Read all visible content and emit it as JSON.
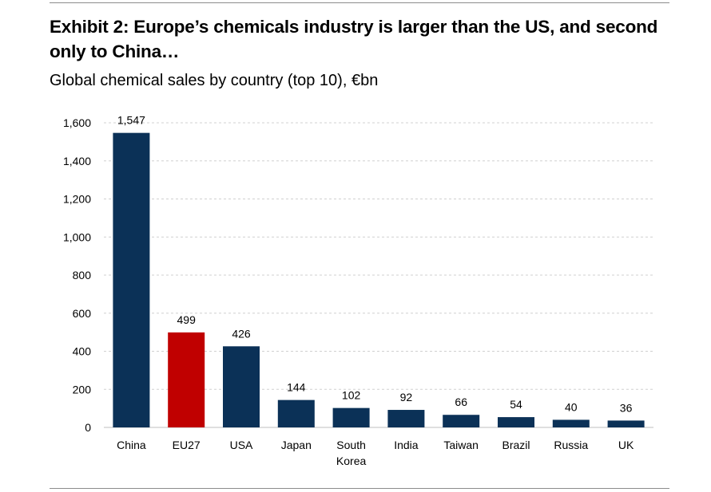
{
  "title": "Exhibit 2: Europe’s chemicals industry is larger than the US, and second only to China…",
  "subtitle": "Global chemical sales by country (top 10), €bn",
  "colors": {
    "default_bar": "#0b3157",
    "highlight_bar": "#c00000",
    "grid": "#d0d0d0",
    "axis": "#bfbfbf"
  },
  "chart_data": {
    "type": "bar",
    "categories": [
      "China",
      "EU27",
      "USA",
      "Japan",
      "South Korea",
      "India",
      "Taiwan",
      "Brazil",
      "Russia",
      "UK"
    ],
    "values": [
      1547,
      499,
      426,
      144,
      102,
      92,
      66,
      54,
      40,
      36
    ],
    "value_labels": [
      "1,547",
      "499",
      "426",
      "144",
      "102",
      "92",
      "66",
      "54",
      "40",
      "36"
    ],
    "highlight": "EU27",
    "ylim": [
      0,
      1600
    ],
    "yticks": [
      0,
      200,
      400,
      600,
      800,
      1000,
      1200,
      1400,
      1600
    ],
    "ytick_labels": [
      "0",
      "200",
      "400",
      "600",
      "800",
      "1,000",
      "1,200",
      "1,400",
      "1,600"
    ],
    "grid": true,
    "xlabel": "",
    "ylabel": ""
  }
}
